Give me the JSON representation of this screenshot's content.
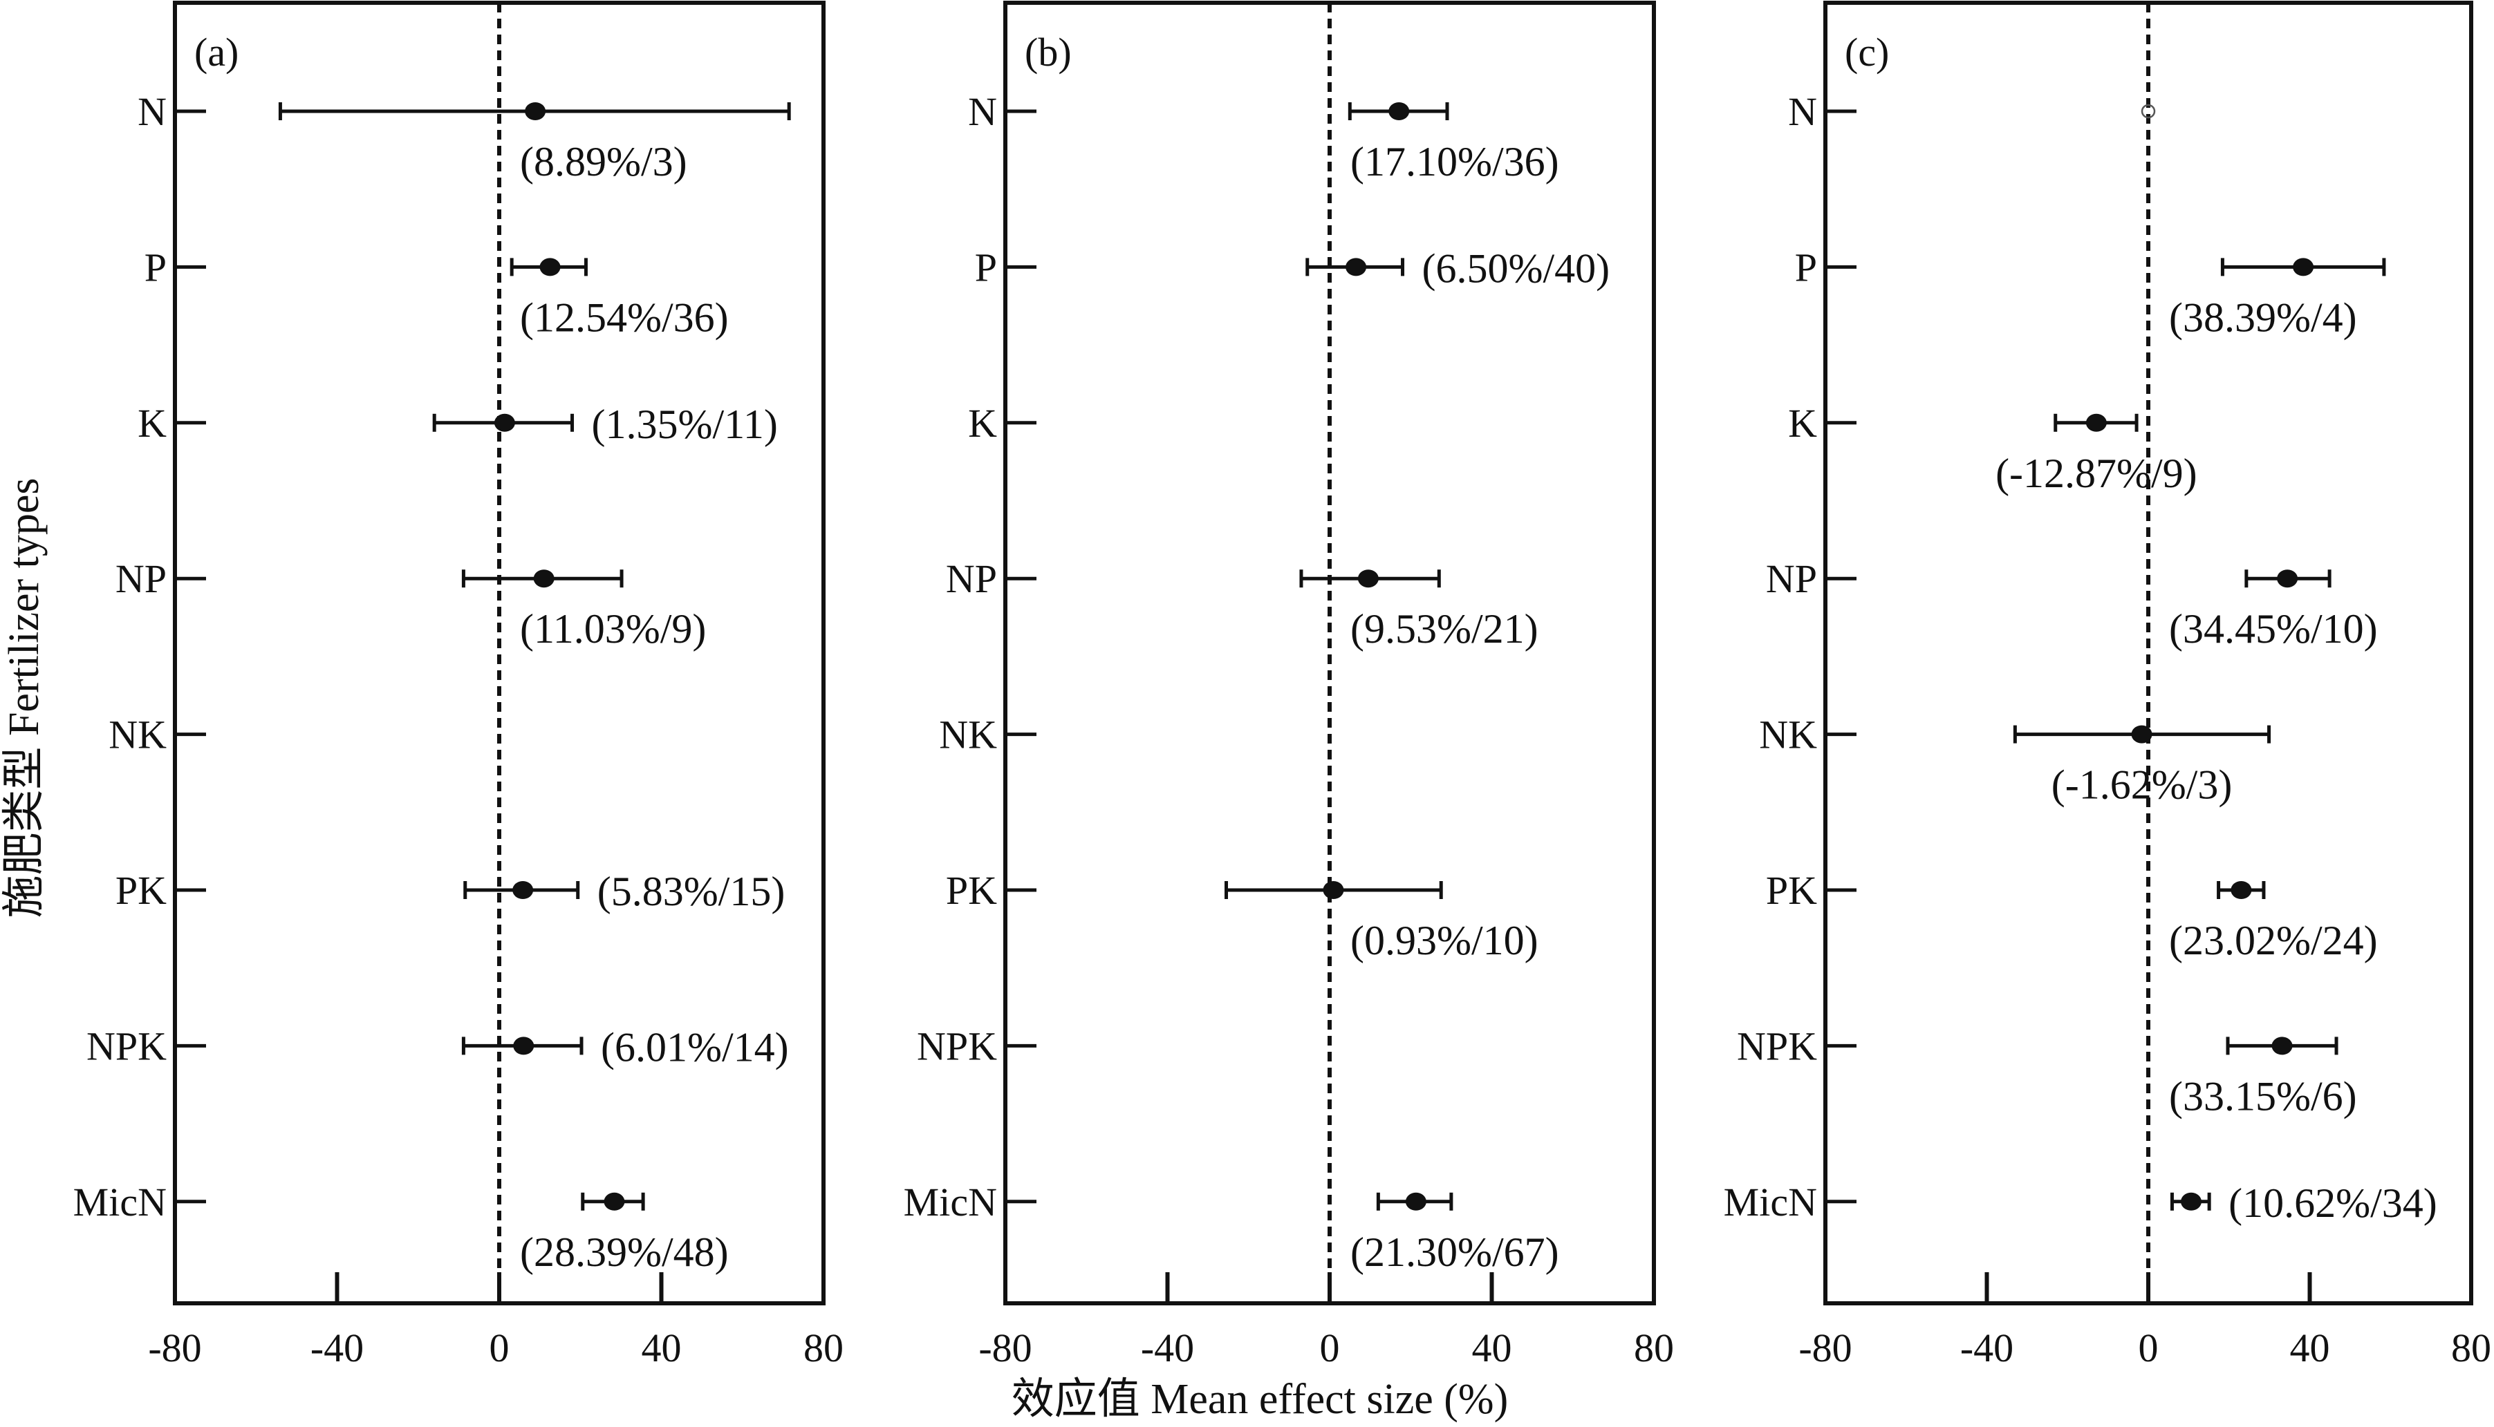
{
  "chart_data": {
    "type": "forest",
    "xlabel": "效应值 Mean effect size (%)",
    "ylabel": "施肥类型 Fertilizer types",
    "xlim": [
      -80,
      80
    ],
    "xticks": [
      -80,
      -40,
      0,
      40,
      80
    ],
    "categories": [
      "N",
      "P",
      "K",
      "NP",
      "NK",
      "PK",
      "NPK",
      "MicN"
    ],
    "reference_line": 0,
    "panels": [
      {
        "label": "(a)",
        "points": [
          {
            "category": "N",
            "mean": 8.89,
            "low": -54,
            "high": 71.5,
            "text": "(8.89%/3)",
            "text_pos": "below"
          },
          {
            "category": "P",
            "mean": 12.54,
            "low": 3.1,
            "high": 21.4,
            "text": "(12.54%/36)",
            "text_pos": "below"
          },
          {
            "category": "K",
            "mean": 1.35,
            "low": -16,
            "high": 18,
            "text": "(1.35%/11)",
            "text_pos": "right"
          },
          {
            "category": "NP",
            "mean": 11.03,
            "low": -8.8,
            "high": 30.2,
            "text": "(11.03%/9)",
            "text_pos": "below"
          },
          {
            "category": "PK",
            "mean": 5.83,
            "low": -8.4,
            "high": 19.4,
            "text": "(5.83%/15)",
            "text_pos": "right"
          },
          {
            "category": "NPK",
            "mean": 6.01,
            "low": -8.8,
            "high": 20.3,
            "text": "(6.01%/14)",
            "text_pos": "right"
          },
          {
            "category": "MicN",
            "mean": 28.39,
            "low": 20.6,
            "high": 35.5,
            "text": "(28.39%/48)",
            "text_pos": "below"
          }
        ]
      },
      {
        "label": "(b)",
        "points": [
          {
            "category": "N",
            "mean": 17.1,
            "low": 5,
            "high": 29,
            "text": "(17.10%/36)",
            "text_pos": "below"
          },
          {
            "category": "P",
            "mean": 6.5,
            "low": -5.5,
            "high": 18,
            "text": "(6.50%/40)",
            "text_pos": "right"
          },
          {
            "category": "NP",
            "mean": 9.53,
            "low": -7,
            "high": 27,
            "text": "(9.53%/21)",
            "text_pos": "below"
          },
          {
            "category": "PK",
            "mean": 0.93,
            "low": -25.5,
            "high": 27.5,
            "text": "(0.93%/10)",
            "text_pos": "below"
          },
          {
            "category": "MicN",
            "mean": 21.3,
            "low": 12,
            "high": 30,
            "text": "(21.30%/67)",
            "text_pos": "below"
          }
        ]
      },
      {
        "label": "(c)",
        "points": [
          {
            "category": "N",
            "mean": 0,
            "open": true
          },
          {
            "category": "P",
            "mean": 38.39,
            "low": 18.4,
            "high": 58.4,
            "text": "(38.39%/4)",
            "text_pos": "below"
          },
          {
            "category": "K",
            "mean": -12.87,
            "low": -23,
            "high": -2.9,
            "text": "(-12.87%/9)",
            "text_pos": "below"
          },
          {
            "category": "NP",
            "mean": 34.45,
            "low": 24.3,
            "high": 44.9,
            "text": "(34.45%/10)",
            "text_pos": "below"
          },
          {
            "category": "NK",
            "mean": -1.62,
            "low": -33,
            "high": 29.9,
            "text": "(-1.62%/3)",
            "text_pos": "below"
          },
          {
            "category": "PK",
            "mean": 23.02,
            "low": 17.4,
            "high": 28.6,
            "text": "(23.02%/24)",
            "text_pos": "below"
          },
          {
            "category": "NPK",
            "mean": 33.15,
            "low": 19.7,
            "high": 46.6,
            "text": "(33.15%/6)",
            "text_pos": "below"
          },
          {
            "category": "MicN",
            "mean": 10.62,
            "low": 5.9,
            "high": 15.1,
            "text": "(10.62%/34)",
            "text_pos": "right"
          }
        ]
      }
    ]
  }
}
